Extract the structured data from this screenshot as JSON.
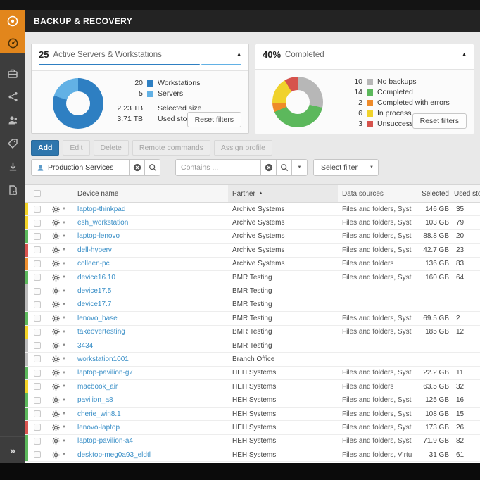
{
  "header": {
    "title": "BACKUP & RECOVERY"
  },
  "icons": {
    "collapse_caret": "▲",
    "dropdown_caret": "▼",
    "sort_asc": "▲",
    "expand_chevrons": "»"
  },
  "sidebar": {
    "icons": [
      "dashboard-gauge",
      "briefcase",
      "share-network",
      "users",
      "tag",
      "download",
      "report-file"
    ],
    "active_index": 0
  },
  "panels": [
    {
      "count": "25",
      "title": "Active Servers & Workstations",
      "stats": [
        {
          "value": "2.23 TB",
          "label": "Selected size"
        },
        {
          "value": "3.71 TB",
          "label": "Used storage"
        }
      ],
      "reset_label": "Reset filters"
    },
    {
      "count": "40%",
      "title": "Completed",
      "reset_label": "Reset filters"
    }
  ],
  "chart_data": [
    {
      "type": "pie",
      "title": "Active Servers & Workstations",
      "total": 25,
      "center_total_label": "25",
      "legend_position": "right",
      "series": [
        {
          "label": "Workstations",
          "value": 20,
          "color": "#2e7fc2"
        },
        {
          "label": "Servers",
          "value": 5,
          "color": "#62b1e5"
        }
      ],
      "annotations": [
        {
          "value": "2.23 TB",
          "label": "Selected size"
        },
        {
          "value": "3.71 TB",
          "label": "Used storage"
        }
      ]
    },
    {
      "type": "pie",
      "title": "Completed",
      "total": 35,
      "center_total_label": "40%",
      "legend_position": "right",
      "series": [
        {
          "label": "No backups",
          "value": 10,
          "color": "#b7b7b7"
        },
        {
          "label": "Completed",
          "value": 14,
          "color": "#5cb85c"
        },
        {
          "label": "Completed with errors",
          "value": 2,
          "color": "#ee8b2a"
        },
        {
          "label": "In process",
          "value": 6,
          "color": "#f0d22c"
        },
        {
          "label": "Unsuccessful",
          "value": 3,
          "color": "#d6534d"
        }
      ]
    }
  ],
  "toolbar": {
    "add_label": "Add",
    "disabled_buttons": [
      "Edit",
      "Delete",
      "Remote commands",
      "Assign profile"
    ]
  },
  "filters": {
    "company_value": "Production Services",
    "contains_placeholder": "Contains ...",
    "select_filter_label": "Select filter"
  },
  "table": {
    "header": {
      "device": "Device name",
      "partner": "Partner",
      "data_sources": "Data sources",
      "selected": "Selected",
      "used": "Used storage"
    },
    "sorted_by": "Partner",
    "status_colors": {
      "green": "#5cb85c",
      "yellow": "#f3d327",
      "red": "#d9534f",
      "orange": "#ee8f2e",
      "gray": "#bdbdbd"
    },
    "rows": [
      {
        "status": "yellow",
        "device": "laptop-thinkpad",
        "partner": "Archive Systems",
        "data_sources": "Files and folders, Syst…",
        "selected": "146 GB",
        "used": "35"
      },
      {
        "status": "yellow",
        "device": "esh_workstation",
        "partner": "Archive Systems",
        "data_sources": "Files and folders, Syst…",
        "selected": "103 GB",
        "used": "79"
      },
      {
        "status": "green",
        "device": "laptop-lenovo",
        "partner": "Archive Systems",
        "data_sources": "Files and folders, Syst…",
        "selected": "88.8 GB",
        "used": "20"
      },
      {
        "status": "red",
        "device": "dell-hyperv",
        "partner": "Archive Systems",
        "data_sources": "Files and folders, Syst…",
        "selected": "42.7 GB",
        "used": "23"
      },
      {
        "status": "orange",
        "device": "colleen-pc",
        "partner": "Archive Systems",
        "data_sources": "Files and folders",
        "selected": "136 GB",
        "used": "83"
      },
      {
        "status": "green",
        "device": "device16.10",
        "partner": "BMR Testing",
        "data_sources": "Files and folders, Syst…",
        "selected": "160 GB",
        "used": "64"
      },
      {
        "status": "gray",
        "device": "device17.5",
        "partner": "BMR Testing",
        "data_sources": "",
        "selected": "",
        "used": ""
      },
      {
        "status": "gray",
        "device": "device17.7",
        "partner": "BMR Testing",
        "data_sources": "",
        "selected": "",
        "used": ""
      },
      {
        "status": "green",
        "device": "lenovo_base",
        "partner": "BMR Testing",
        "data_sources": "Files and folders, Syst…",
        "selected": "69.5 GB",
        "used": "2"
      },
      {
        "status": "yellow",
        "device": "takeovertesting",
        "partner": "BMR Testing",
        "data_sources": "Files and folders, Syst…",
        "selected": "185 GB",
        "used": "12"
      },
      {
        "status": "gray",
        "device": "3434",
        "partner": "BMR Testing",
        "data_sources": "",
        "selected": "",
        "used": ""
      },
      {
        "status": "gray",
        "device": "workstation1001",
        "partner": "Branch Office",
        "data_sources": "",
        "selected": "",
        "used": ""
      },
      {
        "status": "green",
        "device": "laptop-pavilion-g7",
        "partner": "HEH Systems",
        "data_sources": "Files and folders, Syst…",
        "selected": "22.2 GB",
        "used": "11"
      },
      {
        "status": "yellow",
        "device": "macbook_air",
        "partner": "HEH Systems",
        "data_sources": "Files and folders",
        "selected": "63.5 GB",
        "used": "32"
      },
      {
        "status": "green",
        "device": "pavilion_a8",
        "partner": "HEH Systems",
        "data_sources": "Files and folders, Syst…",
        "selected": "125 GB",
        "used": "16"
      },
      {
        "status": "green",
        "device": "cherie_win8.1",
        "partner": "HEH Systems",
        "data_sources": "Files and folders, Syst…",
        "selected": "108 GB",
        "used": "15"
      },
      {
        "status": "red",
        "device": "lenovo-laptop",
        "partner": "HEH Systems",
        "data_sources": "Files and folders, Syst…",
        "selected": "173 GB",
        "used": "26"
      },
      {
        "status": "green",
        "device": "laptop-pavilion-a4",
        "partner": "HEH Systems",
        "data_sources": "Files and folders, Syst…",
        "selected": "71.9 GB",
        "used": "82"
      },
      {
        "status": "green",
        "device": "desktop-meg0a93_eldtl",
        "partner": "HEH Systems",
        "data_sources": "Files and folders, Virtu…",
        "selected": "31 GB",
        "used": "61"
      }
    ]
  }
}
